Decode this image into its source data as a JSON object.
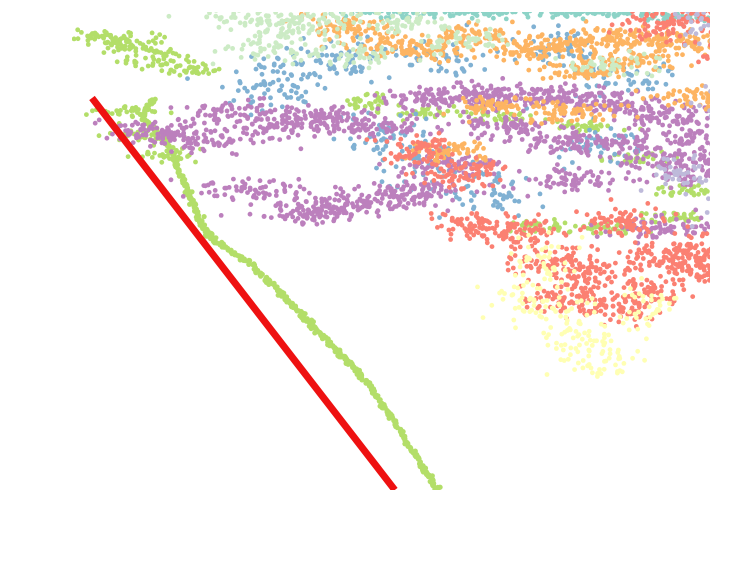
{
  "chart_data": {
    "type": "scatter",
    "title": "",
    "xlabel": "",
    "ylabel": "",
    "axes_visible": false,
    "grid": false,
    "legend": "none",
    "xlim": [
      0,
      100
    ],
    "ylim": [
      0,
      100
    ],
    "reference_line": {
      "color": "#ee1111",
      "points": [
        [
          0,
          82
        ],
        [
          49,
          0
        ]
      ]
    },
    "series": [
      {
        "color": "#b3de69",
        "kind": "frontier",
        "points": [
          [
            10,
            82
          ],
          [
            8,
            78
          ],
          [
            12,
            73
          ],
          [
            14,
            67
          ],
          [
            16,
            61
          ],
          [
            18,
            55
          ],
          [
            20,
            52
          ],
          [
            25,
            48
          ],
          [
            30,
            42
          ],
          [
            33,
            38
          ],
          [
            36,
            34
          ],
          [
            39,
            30
          ],
          [
            42,
            26
          ],
          [
            45,
            22
          ],
          [
            48,
            16
          ],
          [
            51,
            10
          ],
          [
            54,
            4
          ],
          [
            56,
            0
          ]
        ]
      },
      {
        "color": "#b3de69",
        "kind": "cluster",
        "count": 550,
        "spread": [
          3,
          0.7
        ],
        "centers": [
          [
            2,
            95
          ],
          [
            5,
            94
          ],
          [
            8,
            92
          ],
          [
            11,
            90
          ],
          [
            16,
            88
          ],
          [
            5,
            79
          ],
          [
            7,
            74
          ],
          [
            12,
            70
          ],
          [
            45,
            81
          ],
          [
            55,
            79
          ],
          [
            67,
            78
          ],
          [
            80,
            76
          ],
          [
            88,
            69
          ],
          [
            97,
            63
          ],
          [
            72,
            55
          ],
          [
            84,
            55
          ],
          [
            94,
            57
          ]
        ]
      },
      {
        "color": "#80b1d3",
        "kind": "cluster",
        "count": 450,
        "spread": [
          4,
          2.2
        ],
        "centers": [
          [
            32,
            88
          ],
          [
            30,
            84
          ],
          [
            42,
            91
          ],
          [
            48,
            74
          ],
          [
            58,
            90
          ],
          [
            55,
            68
          ],
          [
            65,
            62
          ],
          [
            86,
            86
          ],
          [
            76,
            92
          ],
          [
            82,
            72
          ]
        ]
      },
      {
        "color": "#bc80bd",
        "kind": "cluster",
        "count": 1800,
        "spread": [
          4.5,
          1.2
        ],
        "centers": [
          [
            10,
            75
          ],
          [
            17,
            73
          ],
          [
            24,
            79
          ],
          [
            30,
            76
          ],
          [
            38,
            78
          ],
          [
            46,
            76
          ],
          [
            55,
            82
          ],
          [
            62,
            83
          ],
          [
            70,
            82
          ],
          [
            78,
            82
          ],
          [
            86,
            80
          ],
          [
            94,
            78
          ],
          [
            99,
            74
          ],
          [
            66,
            76
          ],
          [
            75,
            73
          ],
          [
            85,
            72
          ],
          [
            95,
            69
          ],
          [
            100,
            66
          ],
          [
            78,
            65
          ],
          [
            92,
            55
          ],
          [
            25,
            63
          ],
          [
            33,
            58
          ],
          [
            40,
            59
          ],
          [
            48,
            61
          ],
          [
            52,
            63
          ],
          [
            58,
            68
          ]
        ]
      },
      {
        "color": "#fdb462",
        "kind": "cluster",
        "count": 900,
        "spread": [
          4,
          1.1
        ],
        "centers": [
          [
            40,
            97
          ],
          [
            48,
            94
          ],
          [
            55,
            92
          ],
          [
            62,
            95
          ],
          [
            70,
            92
          ],
          [
            78,
            93
          ],
          [
            85,
            95
          ],
          [
            92,
            94
          ],
          [
            99,
            94
          ],
          [
            80,
            88
          ],
          [
            88,
            90
          ],
          [
            58,
            71
          ],
          [
            66,
            80
          ],
          [
            78,
            79
          ],
          [
            98,
            82
          ]
        ]
      },
      {
        "color": "#8dd3c7",
        "kind": "cluster",
        "count": 350,
        "spread": [
          4,
          0.6
        ],
        "centers": [
          [
            47,
            100
          ],
          [
            55,
            101
          ],
          [
            62,
            100
          ],
          [
            70,
            101
          ],
          [
            78,
            100
          ],
          [
            85,
            100
          ],
          [
            96,
            99
          ]
        ]
      },
      {
        "color": "#ccebc5",
        "kind": "cluster",
        "count": 450,
        "spread": [
          4,
          1.2
        ],
        "centers": [
          [
            22,
            101
          ],
          [
            27,
            98
          ],
          [
            32,
            96
          ],
          [
            30,
            92
          ],
          [
            37,
            99
          ],
          [
            44,
            91
          ],
          [
            46,
            102
          ],
          [
            60,
            94
          ],
          [
            85,
            89
          ],
          [
            52,
            97
          ]
        ]
      },
      {
        "color": "#fb8072",
        "kind": "cluster",
        "count": 1200,
        "spread": [
          3.5,
          1.6
        ],
        "centers": [
          [
            53,
            71
          ],
          [
            60,
            66
          ],
          [
            62,
            55
          ],
          [
            69,
            54
          ],
          [
            75,
            48
          ],
          [
            80,
            45
          ],
          [
            76,
            40
          ],
          [
            85,
            38
          ],
          [
            90,
            41
          ],
          [
            98,
            46
          ],
          [
            98,
            50
          ],
          [
            104,
            52
          ],
          [
            108,
            46
          ],
          [
            86,
            56
          ],
          [
            92,
            48
          ],
          [
            93,
            97
          ],
          [
            99,
            100
          ],
          [
            105,
            91
          ]
        ]
      },
      {
        "color": "#ffffb3",
        "kind": "cluster",
        "count": 230,
        "spread": [
          3,
          2.5
        ],
        "centers": [
          [
            70,
            40
          ],
          [
            75,
            36
          ],
          [
            78,
            31
          ],
          [
            82,
            27
          ],
          [
            73,
            48
          ],
          [
            90,
            38
          ]
        ]
      },
      {
        "color": "#bebada",
        "kind": "cluster",
        "count": 200,
        "spread": [
          3,
          2
        ],
        "centers": [
          [
            108,
            90
          ],
          [
            104,
            80
          ],
          [
            96,
            66
          ],
          [
            104,
            58
          ],
          [
            100,
            98
          ]
        ]
      }
    ]
  }
}
